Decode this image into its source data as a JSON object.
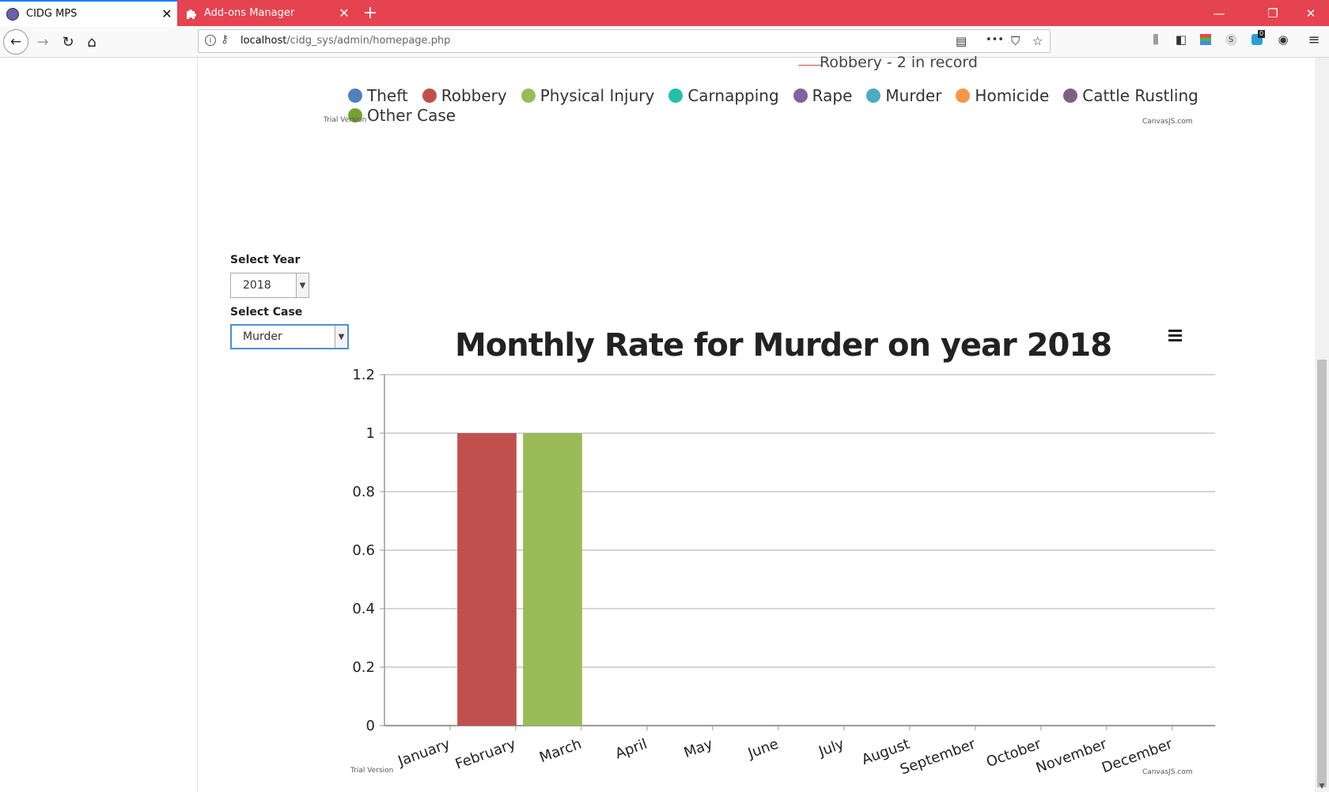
{
  "browser": {
    "tabs": [
      {
        "title": "CIDG MPS",
        "active": true
      },
      {
        "title": "Add-ons Manager",
        "active": false
      }
    ],
    "url_host": "localhost",
    "url_path": "/cidg_sys/admin/homepage.php",
    "notification_count": "0",
    "accent_color": "#e5434f"
  },
  "pie_chart": {
    "slice_label": "Robbery - 2 in record",
    "legend": [
      {
        "name": "Theft",
        "color": "#4f81bc"
      },
      {
        "name": "Robbery",
        "color": "#c0504e"
      },
      {
        "name": "Physical Injury",
        "color": "#9bbb58"
      },
      {
        "name": "Carnapping",
        "color": "#23bfaa"
      },
      {
        "name": "Rape",
        "color": "#8064a1"
      },
      {
        "name": "Murder",
        "color": "#4aacc5"
      },
      {
        "name": "Homicide",
        "color": "#f79647"
      },
      {
        "name": "Cattle Rustling",
        "color": "#7f6084"
      },
      {
        "name": "Other Case",
        "color": "#77a033"
      }
    ],
    "trial_text": "Trial Version",
    "credit_text": "CanvasJS.com"
  },
  "filters": {
    "year_label": "Select Year",
    "year_value": "2018",
    "case_label": "Select Case",
    "case_value": "Murder"
  },
  "chart_data": {
    "type": "bar",
    "title": "Monthly Rate for Murder on year 2018",
    "categories": [
      "January",
      "February",
      "March",
      "April",
      "May",
      "June",
      "July",
      "August",
      "September",
      "October",
      "November",
      "December"
    ],
    "values": [
      0,
      1,
      1,
      0,
      0,
      0,
      0,
      0,
      0,
      0,
      0,
      0
    ],
    "bar_colors": [
      "#4f81bc",
      "#c0504e",
      "#9bbb58",
      "#23bfaa",
      "#8064a1",
      "#4aacc5",
      "#f79647",
      "#7f6084",
      "#77a033",
      "#4f81bc",
      "#c0504e",
      "#9bbb58"
    ],
    "yticks": [
      "0",
      "0.2",
      "0.4",
      "0.6",
      "0.8",
      "1",
      "1.2"
    ],
    "ylim": [
      0,
      1.2
    ],
    "grid": true,
    "trial_text": "Trial Version",
    "credit_text": "CanvasJS.com"
  }
}
